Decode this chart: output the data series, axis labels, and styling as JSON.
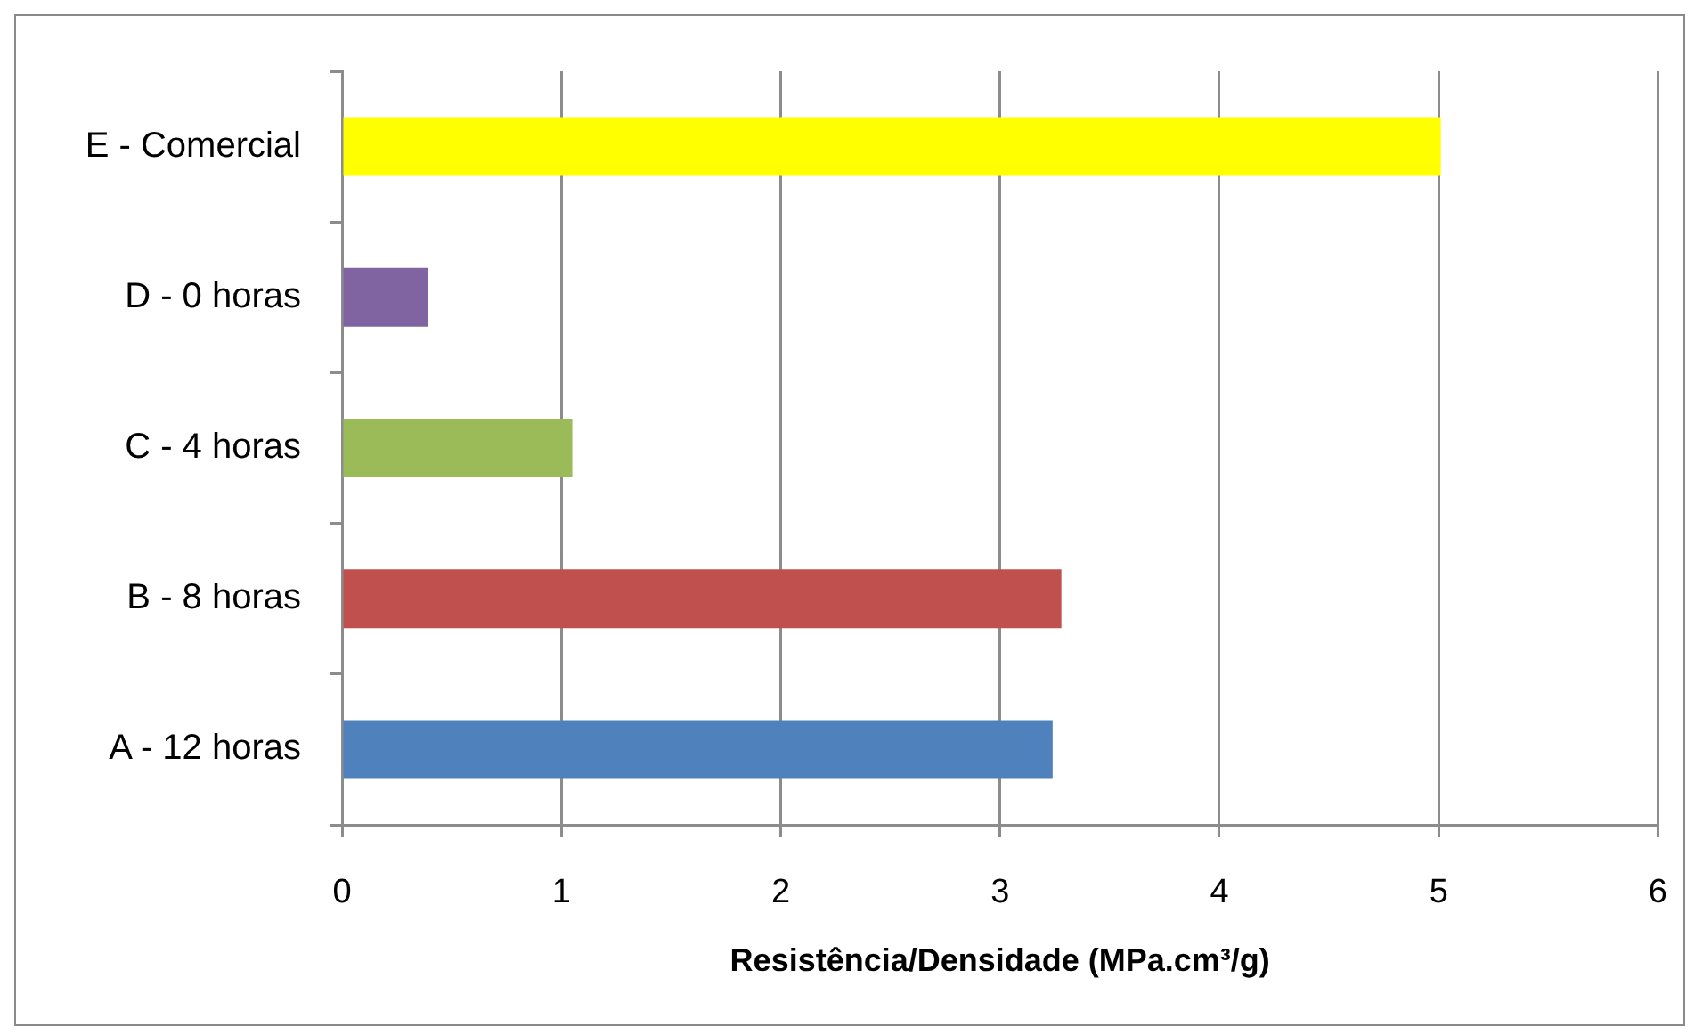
{
  "chart_data": {
    "type": "bar",
    "orientation": "horizontal",
    "xlabel": "Resistência/Densidade (MPa.cm³/g)",
    "categories": [
      "E - Comercial",
      "D - 0 horas",
      "C - 4 horas",
      "B - 8 horas",
      "A - 12 horas"
    ],
    "values": [
      5.01,
      0.39,
      1.05,
      3.28,
      3.24
    ],
    "colors": [
      "#ffff00",
      "#8064a2",
      "#9bbb59",
      "#c0504d",
      "#4f81bd"
    ],
    "xlim": [
      0,
      6
    ],
    "xticks": [
      0,
      1,
      2,
      3,
      4,
      5,
      6
    ],
    "grid": "x"
  }
}
